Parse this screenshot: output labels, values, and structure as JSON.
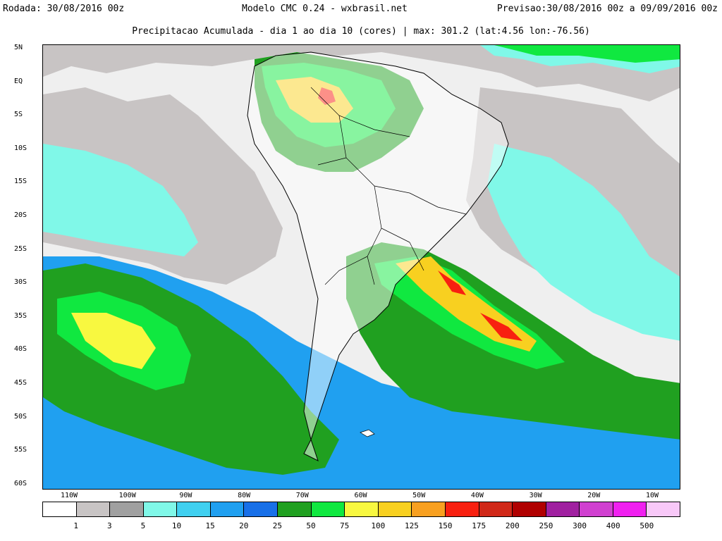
{
  "header": {
    "left": "Rodada: 30/08/2016 00z",
    "center": "Modelo CMC 0.24 - wxbrasil.net",
    "right": "Previsao:30/08/2016 00z a 09/09/2016 00z",
    "subtitle": "Precipitacao Acumulada - dia 1 ao dia 10 (cores) | max: 301.2 (lat:4.56 lon:-76.56)"
  },
  "map": {
    "lat_labels": [
      "5N",
      "EQ",
      "5S",
      "10S",
      "15S",
      "20S",
      "25S",
      "30S",
      "35S",
      "40S",
      "45S",
      "50S",
      "55S",
      "60S"
    ],
    "lon_labels": [
      "110W",
      "100W",
      "90W",
      "80W",
      "70W",
      "60W",
      "50W",
      "40W",
      "30W",
      "20W",
      "10W"
    ]
  },
  "legend": {
    "colors": [
      "#ffffff",
      "#c8c4c4",
      "#a0a0a0",
      "#80f8e8",
      "#40d0f0",
      "#20a0f0",
      "#1870e8",
      "#20a020",
      "#10e840",
      "#f8f840",
      "#f8d020",
      "#f8a020",
      "#f82010",
      "#d02818",
      "#b00000",
      "#a020a0",
      "#d040d0",
      "#f020f0",
      "#f8c8f8"
    ],
    "values": [
      "1",
      "3",
      "5",
      "10",
      "15",
      "20",
      "25",
      "50",
      "75",
      "100",
      "125",
      "150",
      "175",
      "200",
      "250",
      "300",
      "400",
      "500"
    ]
  }
}
